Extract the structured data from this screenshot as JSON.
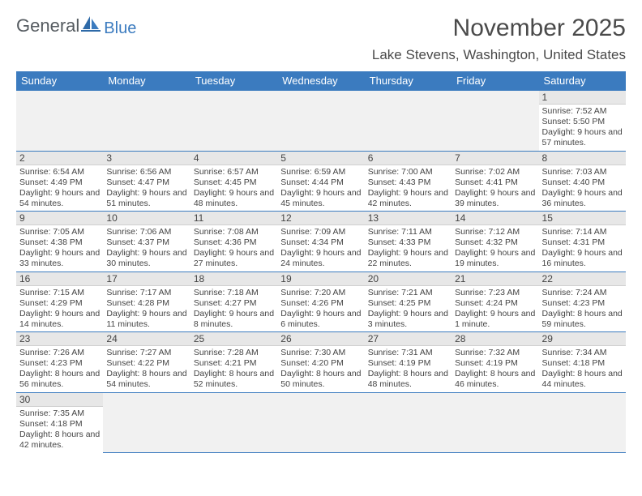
{
  "logo": {
    "word1": "General",
    "word2": "Blue",
    "icon_color": "#3b7bbf"
  },
  "title": "November 2025",
  "location": "Lake Stevens, Washington, United States",
  "header_bg": "#3b7bbf",
  "header_fg": "#ffffff",
  "daynum_bg": "#e7e7e7",
  "days": [
    "Sunday",
    "Monday",
    "Tuesday",
    "Wednesday",
    "Thursday",
    "Friday",
    "Saturday"
  ],
  "weeks": [
    [
      null,
      null,
      null,
      null,
      null,
      null,
      {
        "n": "1",
        "sr": "7:52 AM",
        "ss": "5:50 PM",
        "dl": "9 hours and 57 minutes."
      }
    ],
    [
      {
        "n": "2",
        "sr": "6:54 AM",
        "ss": "4:49 PM",
        "dl": "9 hours and 54 minutes."
      },
      {
        "n": "3",
        "sr": "6:56 AM",
        "ss": "4:47 PM",
        "dl": "9 hours and 51 minutes."
      },
      {
        "n": "4",
        "sr": "6:57 AM",
        "ss": "4:45 PM",
        "dl": "9 hours and 48 minutes."
      },
      {
        "n": "5",
        "sr": "6:59 AM",
        "ss": "4:44 PM",
        "dl": "9 hours and 45 minutes."
      },
      {
        "n": "6",
        "sr": "7:00 AM",
        "ss": "4:43 PM",
        "dl": "9 hours and 42 minutes."
      },
      {
        "n": "7",
        "sr": "7:02 AM",
        "ss": "4:41 PM",
        "dl": "9 hours and 39 minutes."
      },
      {
        "n": "8",
        "sr": "7:03 AM",
        "ss": "4:40 PM",
        "dl": "9 hours and 36 minutes."
      }
    ],
    [
      {
        "n": "9",
        "sr": "7:05 AM",
        "ss": "4:38 PM",
        "dl": "9 hours and 33 minutes."
      },
      {
        "n": "10",
        "sr": "7:06 AM",
        "ss": "4:37 PM",
        "dl": "9 hours and 30 minutes."
      },
      {
        "n": "11",
        "sr": "7:08 AM",
        "ss": "4:36 PM",
        "dl": "9 hours and 27 minutes."
      },
      {
        "n": "12",
        "sr": "7:09 AM",
        "ss": "4:34 PM",
        "dl": "9 hours and 24 minutes."
      },
      {
        "n": "13",
        "sr": "7:11 AM",
        "ss": "4:33 PM",
        "dl": "9 hours and 22 minutes."
      },
      {
        "n": "14",
        "sr": "7:12 AM",
        "ss": "4:32 PM",
        "dl": "9 hours and 19 minutes."
      },
      {
        "n": "15",
        "sr": "7:14 AM",
        "ss": "4:31 PM",
        "dl": "9 hours and 16 minutes."
      }
    ],
    [
      {
        "n": "16",
        "sr": "7:15 AM",
        "ss": "4:29 PM",
        "dl": "9 hours and 14 minutes."
      },
      {
        "n": "17",
        "sr": "7:17 AM",
        "ss": "4:28 PM",
        "dl": "9 hours and 11 minutes."
      },
      {
        "n": "18",
        "sr": "7:18 AM",
        "ss": "4:27 PM",
        "dl": "9 hours and 8 minutes."
      },
      {
        "n": "19",
        "sr": "7:20 AM",
        "ss": "4:26 PM",
        "dl": "9 hours and 6 minutes."
      },
      {
        "n": "20",
        "sr": "7:21 AM",
        "ss": "4:25 PM",
        "dl": "9 hours and 3 minutes."
      },
      {
        "n": "21",
        "sr": "7:23 AM",
        "ss": "4:24 PM",
        "dl": "9 hours and 1 minute."
      },
      {
        "n": "22",
        "sr": "7:24 AM",
        "ss": "4:23 PM",
        "dl": "8 hours and 59 minutes."
      }
    ],
    [
      {
        "n": "23",
        "sr": "7:26 AM",
        "ss": "4:23 PM",
        "dl": "8 hours and 56 minutes."
      },
      {
        "n": "24",
        "sr": "7:27 AM",
        "ss": "4:22 PM",
        "dl": "8 hours and 54 minutes."
      },
      {
        "n": "25",
        "sr": "7:28 AM",
        "ss": "4:21 PM",
        "dl": "8 hours and 52 minutes."
      },
      {
        "n": "26",
        "sr": "7:30 AM",
        "ss": "4:20 PM",
        "dl": "8 hours and 50 minutes."
      },
      {
        "n": "27",
        "sr": "7:31 AM",
        "ss": "4:19 PM",
        "dl": "8 hours and 48 minutes."
      },
      {
        "n": "28",
        "sr": "7:32 AM",
        "ss": "4:19 PM",
        "dl": "8 hours and 46 minutes."
      },
      {
        "n": "29",
        "sr": "7:34 AM",
        "ss": "4:18 PM",
        "dl": "8 hours and 44 minutes."
      }
    ],
    [
      {
        "n": "30",
        "sr": "7:35 AM",
        "ss": "4:18 PM",
        "dl": "8 hours and 42 minutes."
      },
      null,
      null,
      null,
      null,
      null,
      null
    ]
  ],
  "labels": {
    "sunrise": "Sunrise:",
    "sunset": "Sunset:",
    "daylight": "Daylight:"
  }
}
